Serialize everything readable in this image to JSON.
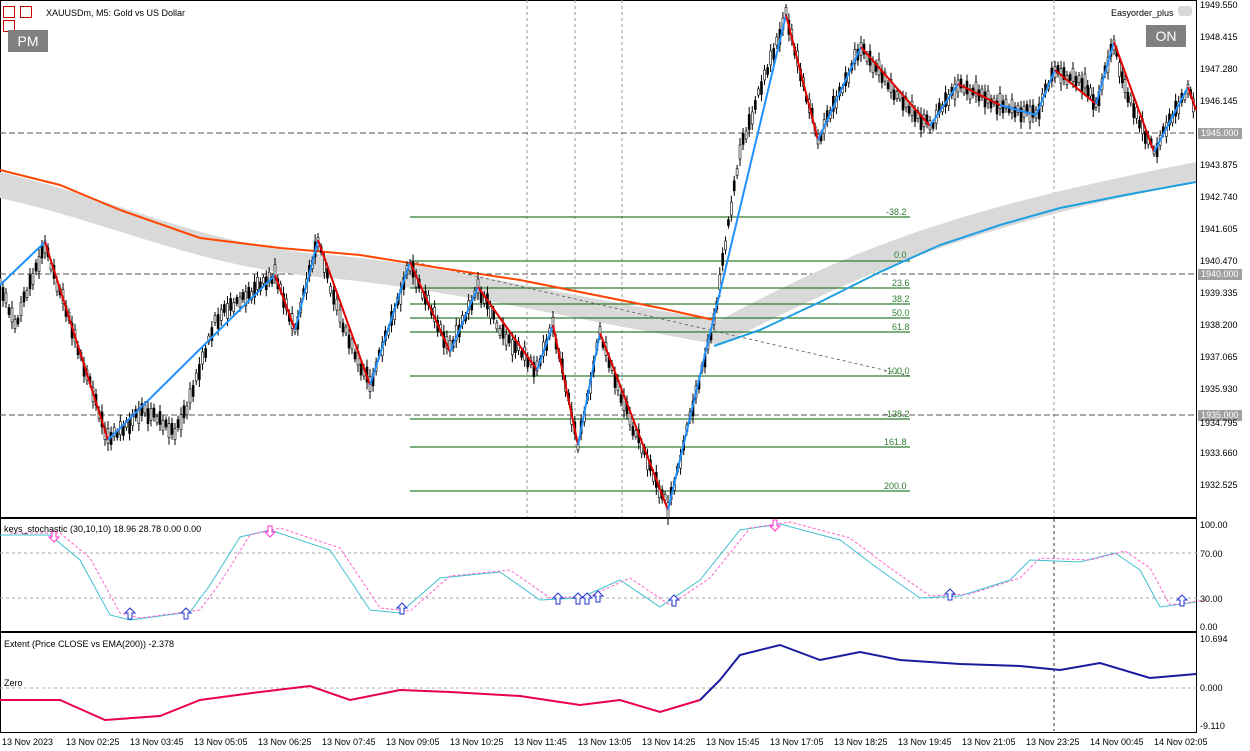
{
  "chart_title": "XAUUSDm, M5:  Gold vs US Dollar",
  "expert_name": "Easyorder_plus",
  "buttons": {
    "left": "PM",
    "right": "ON"
  },
  "price_axis": [
    "1949.550",
    "1948.415",
    "1947.280",
    "1946.145",
    "1945.000",
    "1943.875",
    "1942.740",
    "1941.605",
    "1940.470",
    "1940.000",
    "1939.335",
    "1938.200",
    "1937.065",
    "1935.930",
    "1935.000",
    "1934.795",
    "1933.660",
    "1932.525"
  ],
  "price_tags": {
    "p1945": "1945.000",
    "p1940": "1940.000",
    "p1935": "1935.000"
  },
  "fib_levels": [
    "-38.2",
    "0.0",
    "23.6",
    "38.2",
    "50.0",
    "61.8",
    "-100.0",
    "-138.2",
    "161.8",
    "200.0"
  ],
  "stoch_title": "keys_stochastic (30,10,10) 18.96 28.78 0.00 0.00",
  "stoch_axis": [
    "100.00",
    "70.00",
    "30.00",
    "0.00"
  ],
  "extent_title": "Extent (Price CLOSE vs EMA(200)) -2.378",
  "extent_zero_label": "Zero",
  "extent_axis": [
    "10.694",
    "0.000",
    "-9.110"
  ],
  "time_axis": [
    "13 Nov 2023",
    "13 Nov 02:25",
    "13 Nov 03:45",
    "13 Nov 05:05",
    "13 Nov 06:25",
    "13 Nov 07:45",
    "13 Nov 09:05",
    "13 Nov 10:25",
    "13 Nov 11:45",
    "13 Nov 13:05",
    "13 Nov 14:25",
    "13 Nov 15:45",
    "13 Nov 17:05",
    "13 Nov 18:25",
    "13 Nov 19:45",
    "13 Nov 21:05",
    "13 Nov 23:25",
    "14 Nov 00:45",
    "14 Nov 02:05"
  ],
  "colors": {
    "zigzag_up": "#1e90ff",
    "zigzag_down": "#e00000",
    "ema_orange": "#ff4500",
    "ema_blue": "#1ea0e0",
    "fib": "#2e7d32",
    "stoch_main": "#40c0d0",
    "stoch_signal": "#ff66cc",
    "extent_red": "#e8004a",
    "extent_blue": "#1a1aa0"
  }
}
